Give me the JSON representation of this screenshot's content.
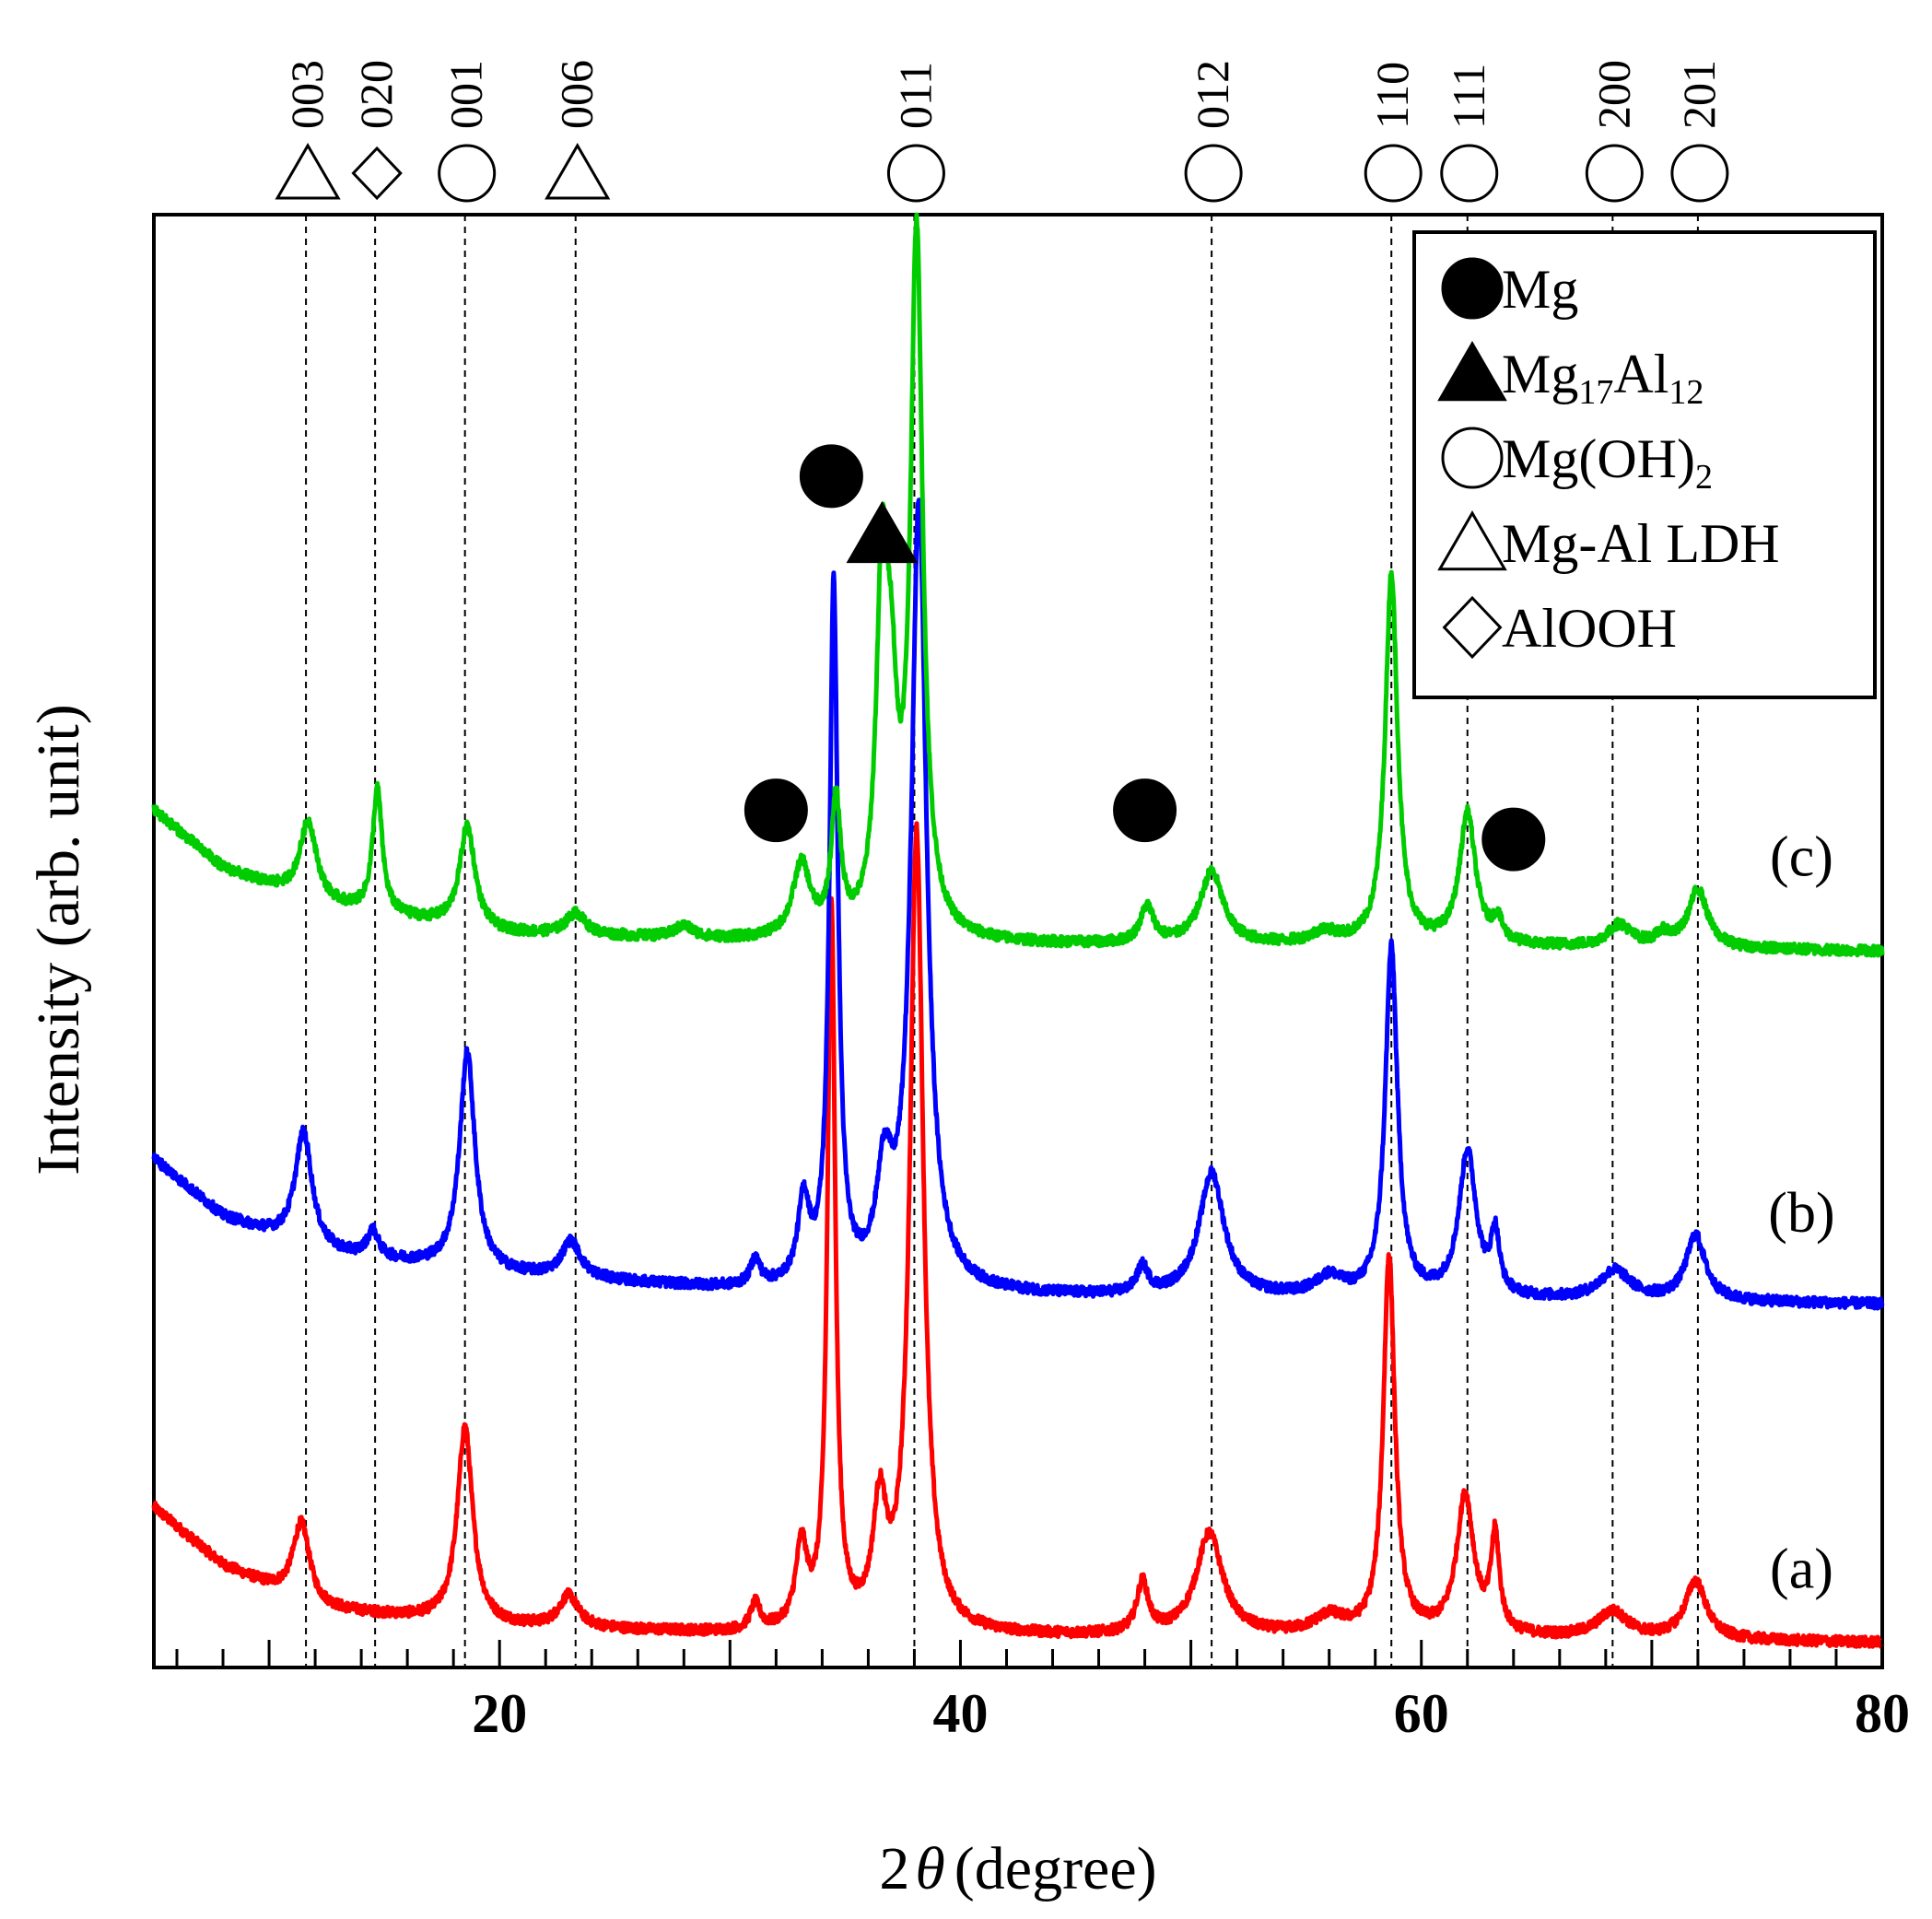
{
  "chart_data": {
    "type": "line",
    "title": "",
    "xlabel": "(degree)",
    "xlabel_prefix": "2",
    "xlabel_symbol": "θ",
    "ylabel": "Intensity (arb. unit)",
    "xlim": [
      5,
      80
    ],
    "ylim": [
      0,
      100
    ],
    "grid": false,
    "xticks": [
      {
        "value": 20,
        "label": "20"
      },
      {
        "value": 40,
        "label": "40"
      },
      {
        "value": 60,
        "label": "60"
      },
      {
        "value": 80,
        "label": "80"
      }
    ],
    "legend": {
      "position": "top-right",
      "entries": [
        {
          "marker": "filled-circle",
          "label": "Mg"
        },
        {
          "marker": "filled-triangle",
          "label": "Mg",
          "sub1": "17",
          "mid": "Al",
          "sub2": "12"
        },
        {
          "marker": "open-circle",
          "label": "Mg(OH)",
          "sub1": "2"
        },
        {
          "marker": "open-triangle",
          "label": "Mg-Al  LDH"
        },
        {
          "marker": "open-diamond",
          "label": "AlOOH"
        }
      ]
    },
    "reference_lines": [
      {
        "x": 11.6,
        "marker": "open-triangle",
        "label": "003"
      },
      {
        "x": 14.6,
        "marker": "open-diamond",
        "label": "020"
      },
      {
        "x": 18.5,
        "marker": "open-circle",
        "label": "001"
      },
      {
        "x": 23.3,
        "marker": "open-triangle",
        "label": "006"
      },
      {
        "x": 38.0,
        "marker": "open-circle",
        "label": "011"
      },
      {
        "x": 50.9,
        "marker": "open-circle",
        "label": "012"
      },
      {
        "x": 58.7,
        "marker": "open-circle",
        "label": "110"
      },
      {
        "x": 62.0,
        "marker": "open-circle",
        "label": "111"
      },
      {
        "x": 68.3,
        "marker": "open-circle",
        "label": "200"
      },
      {
        "x": 72.0,
        "marker": "open-circle",
        "label": "201"
      }
    ],
    "peak_markers": [
      {
        "x": 34.4,
        "y": 82,
        "marker": "filled-circle"
      },
      {
        "x": 36.6,
        "y": 78,
        "marker": "filled-triangle"
      },
      {
        "x": 32.0,
        "y": 59,
        "marker": "filled-circle"
      },
      {
        "x": 48.0,
        "y": 59,
        "marker": "filled-circle"
      },
      {
        "x": 64.0,
        "y": 57,
        "marker": "filled-circle"
      }
    ],
    "series": [
      {
        "name": "(a)",
        "color": "#ff0000",
        "label_x": 76.5,
        "label_y": 5.5,
        "baseline": [
          [
            5,
            11
          ],
          [
            8,
            7
          ],
          [
            12,
            4
          ],
          [
            20,
            2.8
          ],
          [
            30,
            2.3
          ],
          [
            45,
            2.1
          ],
          [
            60,
            2.1
          ],
          [
            70,
            1.9
          ],
          [
            80,
            1.7
          ]
        ],
        "peaks": [
          {
            "x": 11.4,
            "h": 5.5,
            "w": 0.45
          },
          {
            "x": 18.5,
            "h": 13.5,
            "w": 0.4
          },
          {
            "x": 23.0,
            "h": 2.2,
            "w": 0.5
          },
          {
            "x": 31.1,
            "h": 1.8,
            "w": 0.25
          },
          {
            "x": 33.1,
            "h": 5.5,
            "w": 0.3
          },
          {
            "x": 34.4,
            "h": 50,
            "w": 0.2
          },
          {
            "x": 36.5,
            "h": 8,
            "w": 0.35
          },
          {
            "x": 38.1,
            "h": 55,
            "w": 0.35
          },
          {
            "x": 47.9,
            "h": 3.5,
            "w": 0.3
          },
          {
            "x": 50.8,
            "h": 7,
            "w": 0.7
          },
          {
            "x": 56.0,
            "h": 1.2,
            "w": 0.8
          },
          {
            "x": 58.6,
            "h": 26,
            "w": 0.3
          },
          {
            "x": 61.9,
            "h": 9.5,
            "w": 0.45
          },
          {
            "x": 63.2,
            "h": 6.5,
            "w": 0.22
          },
          {
            "x": 68.3,
            "h": 1.8,
            "w": 0.8
          },
          {
            "x": 71.9,
            "h": 4,
            "w": 0.55
          }
        ]
      },
      {
        "name": "(b)",
        "color": "#0000ff",
        "label_x": 76.5,
        "label_y": 30,
        "baseline": [
          [
            5,
            35
          ],
          [
            8,
            31
          ],
          [
            12,
            28.5
          ],
          [
            20,
            27
          ],
          [
            30,
            26
          ],
          [
            45,
            25.5
          ],
          [
            60,
            25.3
          ],
          [
            70,
            25.2
          ],
          [
            80,
            25
          ]
        ],
        "peaks": [
          {
            "x": 11.5,
            "h": 8,
            "w": 0.45
          },
          {
            "x": 14.5,
            "h": 1.8,
            "w": 0.3
          },
          {
            "x": 18.6,
            "h": 15,
            "w": 0.4
          },
          {
            "x": 23.1,
            "h": 2.5,
            "w": 0.5
          },
          {
            "x": 31.1,
            "h": 1.8,
            "w": 0.25
          },
          {
            "x": 33.2,
            "h": 5.5,
            "w": 0.3
          },
          {
            "x": 34.5,
            "h": 48,
            "w": 0.22
          },
          {
            "x": 36.7,
            "h": 7,
            "w": 0.4
          },
          {
            "x": 38.2,
            "h": 54,
            "w": 0.4
          },
          {
            "x": 47.9,
            "h": 1.8,
            "w": 0.3
          },
          {
            "x": 50.9,
            "h": 8.5,
            "w": 0.65
          },
          {
            "x": 56.0,
            "h": 1.3,
            "w": 0.7
          },
          {
            "x": 58.7,
            "h": 24,
            "w": 0.32
          },
          {
            "x": 62.0,
            "h": 10,
            "w": 0.45
          },
          {
            "x": 63.2,
            "h": 4,
            "w": 0.22
          },
          {
            "x": 68.4,
            "h": 2,
            "w": 0.8
          },
          {
            "x": 71.9,
            "h": 4.5,
            "w": 0.5
          }
        ]
      },
      {
        "name": "(c)",
        "color": "#00cc00",
        "label_x": 76.5,
        "label_y": 54.5,
        "baseline": [
          [
            5,
            59
          ],
          [
            8,
            55
          ],
          [
            12,
            52.5
          ],
          [
            20,
            50.5
          ],
          [
            30,
            50
          ],
          [
            45,
            49.7
          ],
          [
            60,
            49.6
          ],
          [
            70,
            49.5
          ],
          [
            80,
            49.3
          ]
        ],
        "peaks": [
          {
            "x": 11.7,
            "h": 5.5,
            "w": 0.45
          },
          {
            "x": 14.7,
            "h": 8.5,
            "w": 0.25
          },
          {
            "x": 18.6,
            "h": 7,
            "w": 0.4
          },
          {
            "x": 23.3,
            "h": 1.5,
            "w": 0.5
          },
          {
            "x": 28.0,
            "h": 0.8,
            "w": 0.5
          },
          {
            "x": 33.1,
            "h": 5,
            "w": 0.45
          },
          {
            "x": 34.6,
            "h": 9,
            "w": 0.25
          },
          {
            "x": 36.6,
            "h": 23,
            "w": 0.3
          },
          {
            "x": 37.0,
            "h": 12,
            "w": 0.3
          },
          {
            "x": 38.1,
            "h": 48,
            "w": 0.32
          },
          {
            "x": 48.1,
            "h": 2.5,
            "w": 0.35
          },
          {
            "x": 50.9,
            "h": 5,
            "w": 0.6
          },
          {
            "x": 55.8,
            "h": 0.8,
            "w": 0.7
          },
          {
            "x": 58.7,
            "h": 25.5,
            "w": 0.32
          },
          {
            "x": 62.0,
            "h": 9,
            "w": 0.42
          },
          {
            "x": 63.3,
            "h": 1.5,
            "w": 0.25
          },
          {
            "x": 68.6,
            "h": 1.5,
            "w": 0.6
          },
          {
            "x": 70.5,
            "h": 0.8,
            "w": 0.4
          },
          {
            "x": 72.0,
            "h": 4,
            "w": 0.5
          }
        ]
      }
    ]
  }
}
